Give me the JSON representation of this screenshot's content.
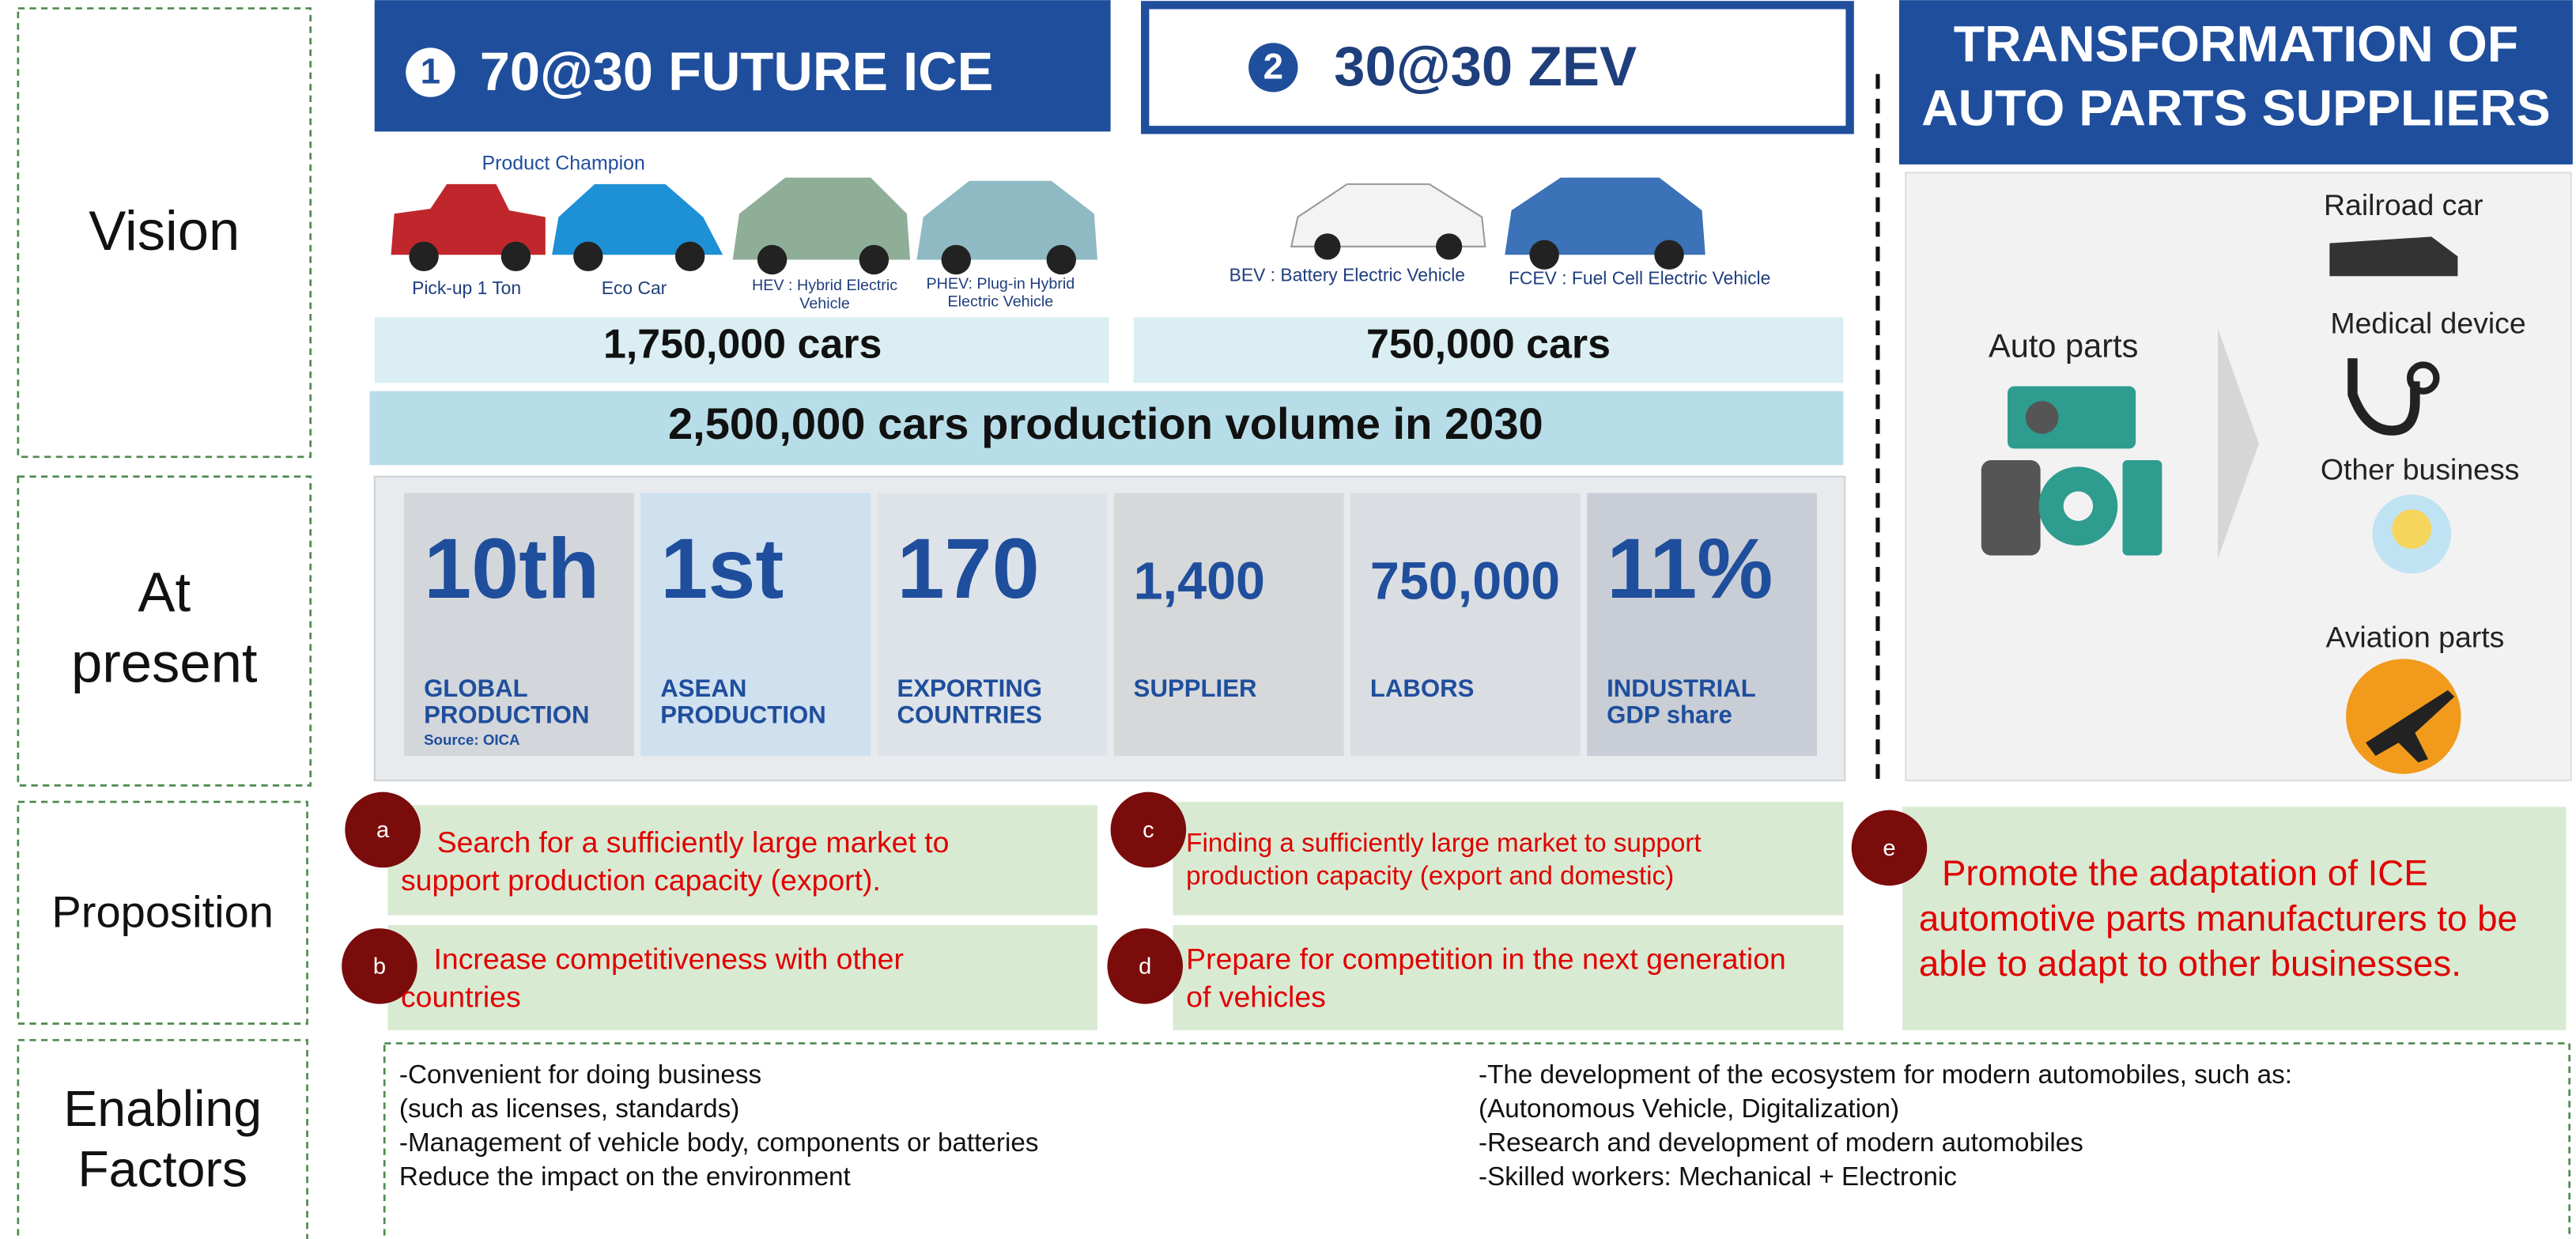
{
  "row_labels": [
    [
      "Vision"
    ],
    [
      "At",
      "present"
    ],
    [
      "Proposition"
    ],
    [
      "Enabling",
      "Factors"
    ]
  ],
  "vision": {
    "future_ice": {
      "number": "1",
      "title": "70@30 FUTURE ICE",
      "product_champion": "Product Champion",
      "vehicles": [
        [
          "Pick-up 1 Ton"
        ],
        [
          "Eco Car"
        ],
        [
          "HEV : Hybrid Electric",
          "Vehicle"
        ],
        [
          "PHEV: Plug-in Hybrid",
          "Electric Vehicle"
        ]
      ],
      "volume": "1,750,000 cars"
    },
    "zev": {
      "number": "2",
      "title": "30@30 ZEV",
      "vehicles": [
        [
          "BEV : Battery Electric Vehicle"
        ],
        [
          "FCEV : Fuel Cell Electric Vehicle"
        ]
      ],
      "volume": "750,000 cars"
    },
    "total": "2,500,000 cars production volume in 2030"
  },
  "at_present": {
    "stats": [
      {
        "value": "10th",
        "label": [
          "GLOBAL",
          "PRODUCTION"
        ],
        "source": "Source: OICA"
      },
      {
        "value": "1st",
        "label": [
          "ASEAN",
          "PRODUCTION"
        ]
      },
      {
        "value": "170",
        "label": [
          "EXPORTING",
          "COUNTRIES"
        ]
      },
      {
        "value": "1,400",
        "label": [
          "SUPPLIER"
        ]
      },
      {
        "value": "750,000",
        "label": [
          "LABORS"
        ]
      },
      {
        "value": "11%",
        "label": [
          "INDUSTRIAL",
          "GDP share"
        ]
      }
    ]
  },
  "transformation": {
    "title": [
      "TRANSFORMATION OF",
      "AUTO PARTS SUPPLIERS"
    ],
    "source": "Auto parts",
    "targets": [
      "Railroad car",
      "Medical device",
      "Other business",
      "Aviation parts"
    ]
  },
  "propositions": [
    {
      "letter": "a",
      "lines": [
        "Search for a sufficiently large market to",
        "support production capacity (export)."
      ]
    },
    {
      "letter": "b",
      "lines": [
        "Increase competitiveness with other",
        "countries"
      ]
    },
    {
      "letter": "c",
      "lines": [
        "Finding a sufficiently large market to support",
        "production capacity (export and domestic)"
      ]
    },
    {
      "letter": "d",
      "lines": [
        "Prepare for competition in the next generation",
        "of vehicles"
      ]
    },
    {
      "letter": "e",
      "lines": [
        "Promote the adaptation of ICE",
        "automotive parts manufacturers to be",
        "able to adapt to other businesses."
      ]
    }
  ],
  "enabling_factors": {
    "left": [
      "-Convenient for doing business",
      "(such as licenses, standards)",
      "-Management of vehicle body, components or batteries",
      "Reduce the impact on the environment"
    ],
    "right": [
      "-The development of the ecosystem for modern automobiles, such as:",
      "(Autonomous Vehicle, Digitalization)",
      "-Research and development of modern automobiles",
      "-Skilled workers: Mechanical + Electronic"
    ]
  }
}
